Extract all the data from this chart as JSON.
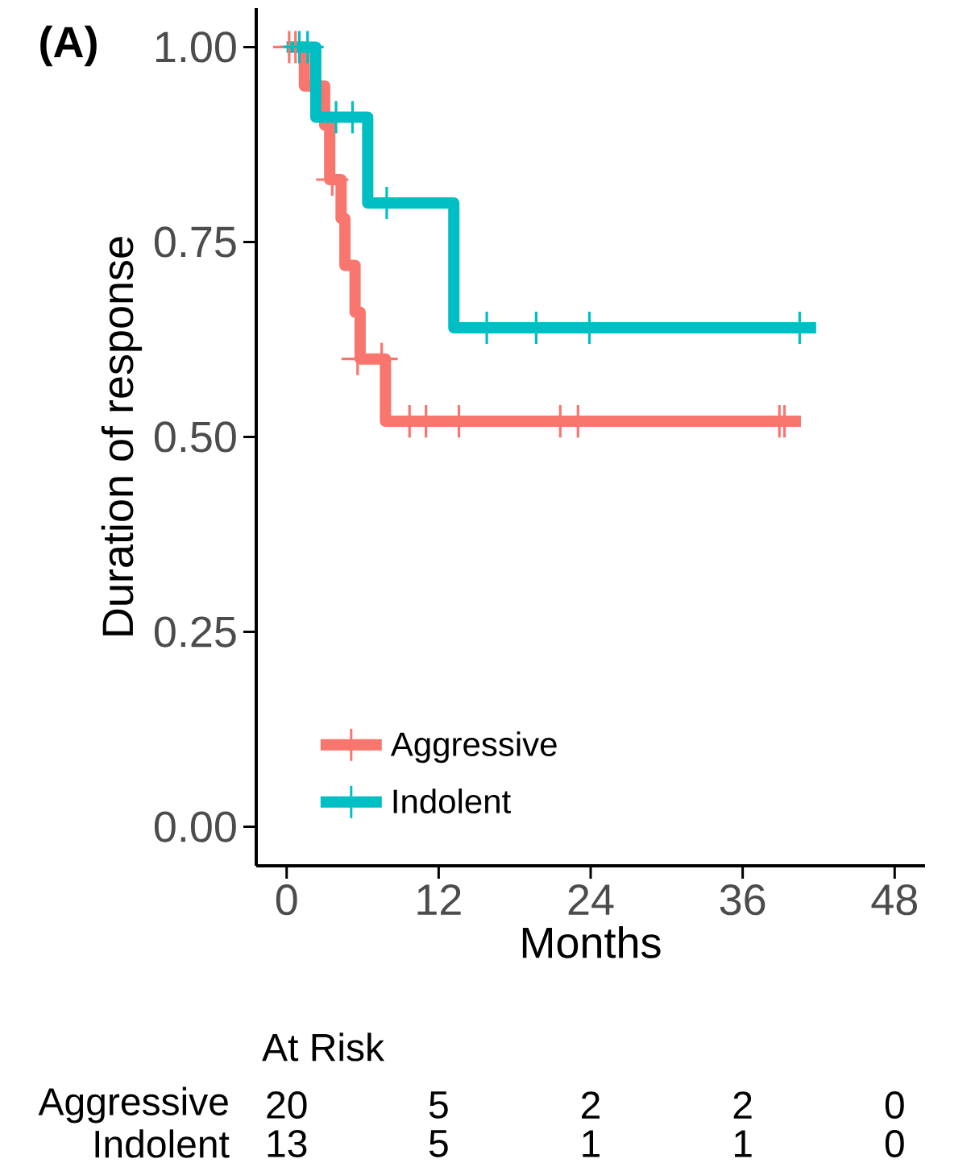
{
  "chart_data": {
    "type": "step",
    "xlabel": "Months",
    "ylabel": "Duration of response",
    "xlim": [
      -2.4,
      50.4
    ],
    "ylim": [
      -0.05,
      1.05
    ],
    "xticks": [
      0,
      12,
      24,
      36,
      48
    ],
    "yticks": [
      {
        "value": 0,
        "label": "0.00"
      },
      {
        "value": 0.25,
        "label": "0.25"
      },
      {
        "value": 0.5,
        "label": "0.50"
      },
      {
        "value": 0.75,
        "label": "0.75"
      },
      {
        "value": 1,
        "label": "1.00"
      }
    ],
    "legend": "bottom left",
    "annotations": [
      "(A)",
      "At Risk",
      "Aggressive",
      "20",
      "5",
      "2",
      "2",
      "0",
      "Indolent",
      "13",
      "5",
      "1",
      "1",
      "0"
    ],
    "series": [
      {
        "name": "Aggressive",
        "color": "#f8766d",
        "x": [
          0,
          1.4,
          3.0,
          3.4,
          4.3,
          4.6,
          5.4,
          5.8,
          7.8,
          40.6
        ],
        "values": [
          1,
          0.95,
          0.9,
          0.83,
          0.78,
          0.72,
          0.66,
          0.6,
          0.52,
          0.52
        ]
      },
      {
        "name": "Indolent",
        "color": "#00bfc4",
        "x": [
          0,
          2.3,
          6.4,
          13.2,
          41.8
        ],
        "values": [
          1,
          0.91,
          0.8,
          0.64,
          0.64
        ]
      },
      {
        "type": "scatter",
        "marker": "cross",
        "color": "#f8766d",
        "x": [
          0.2,
          0.7,
          3.6,
          5.6,
          7.5,
          9.7,
          11.0,
          13.6,
          21.6,
          23.0,
          38.9,
          39.3
        ],
        "values": [
          1,
          1,
          0.83,
          0.6,
          0.6,
          0.52,
          0.52,
          0.52,
          0.52,
          0.52,
          0.52,
          0.52
        ]
      },
      {
        "type": "scatter",
        "marker": "cross",
        "color": "#00bfc4",
        "x": [
          1.0,
          1.65,
          3.9,
          5.2,
          7.9,
          15.8,
          19.7,
          23.9,
          40.5
        ],
        "values": [
          1,
          1,
          0.91,
          0.91,
          0.8,
          0.64,
          0.64,
          0.64,
          0.64
        ]
      }
    ]
  }
}
